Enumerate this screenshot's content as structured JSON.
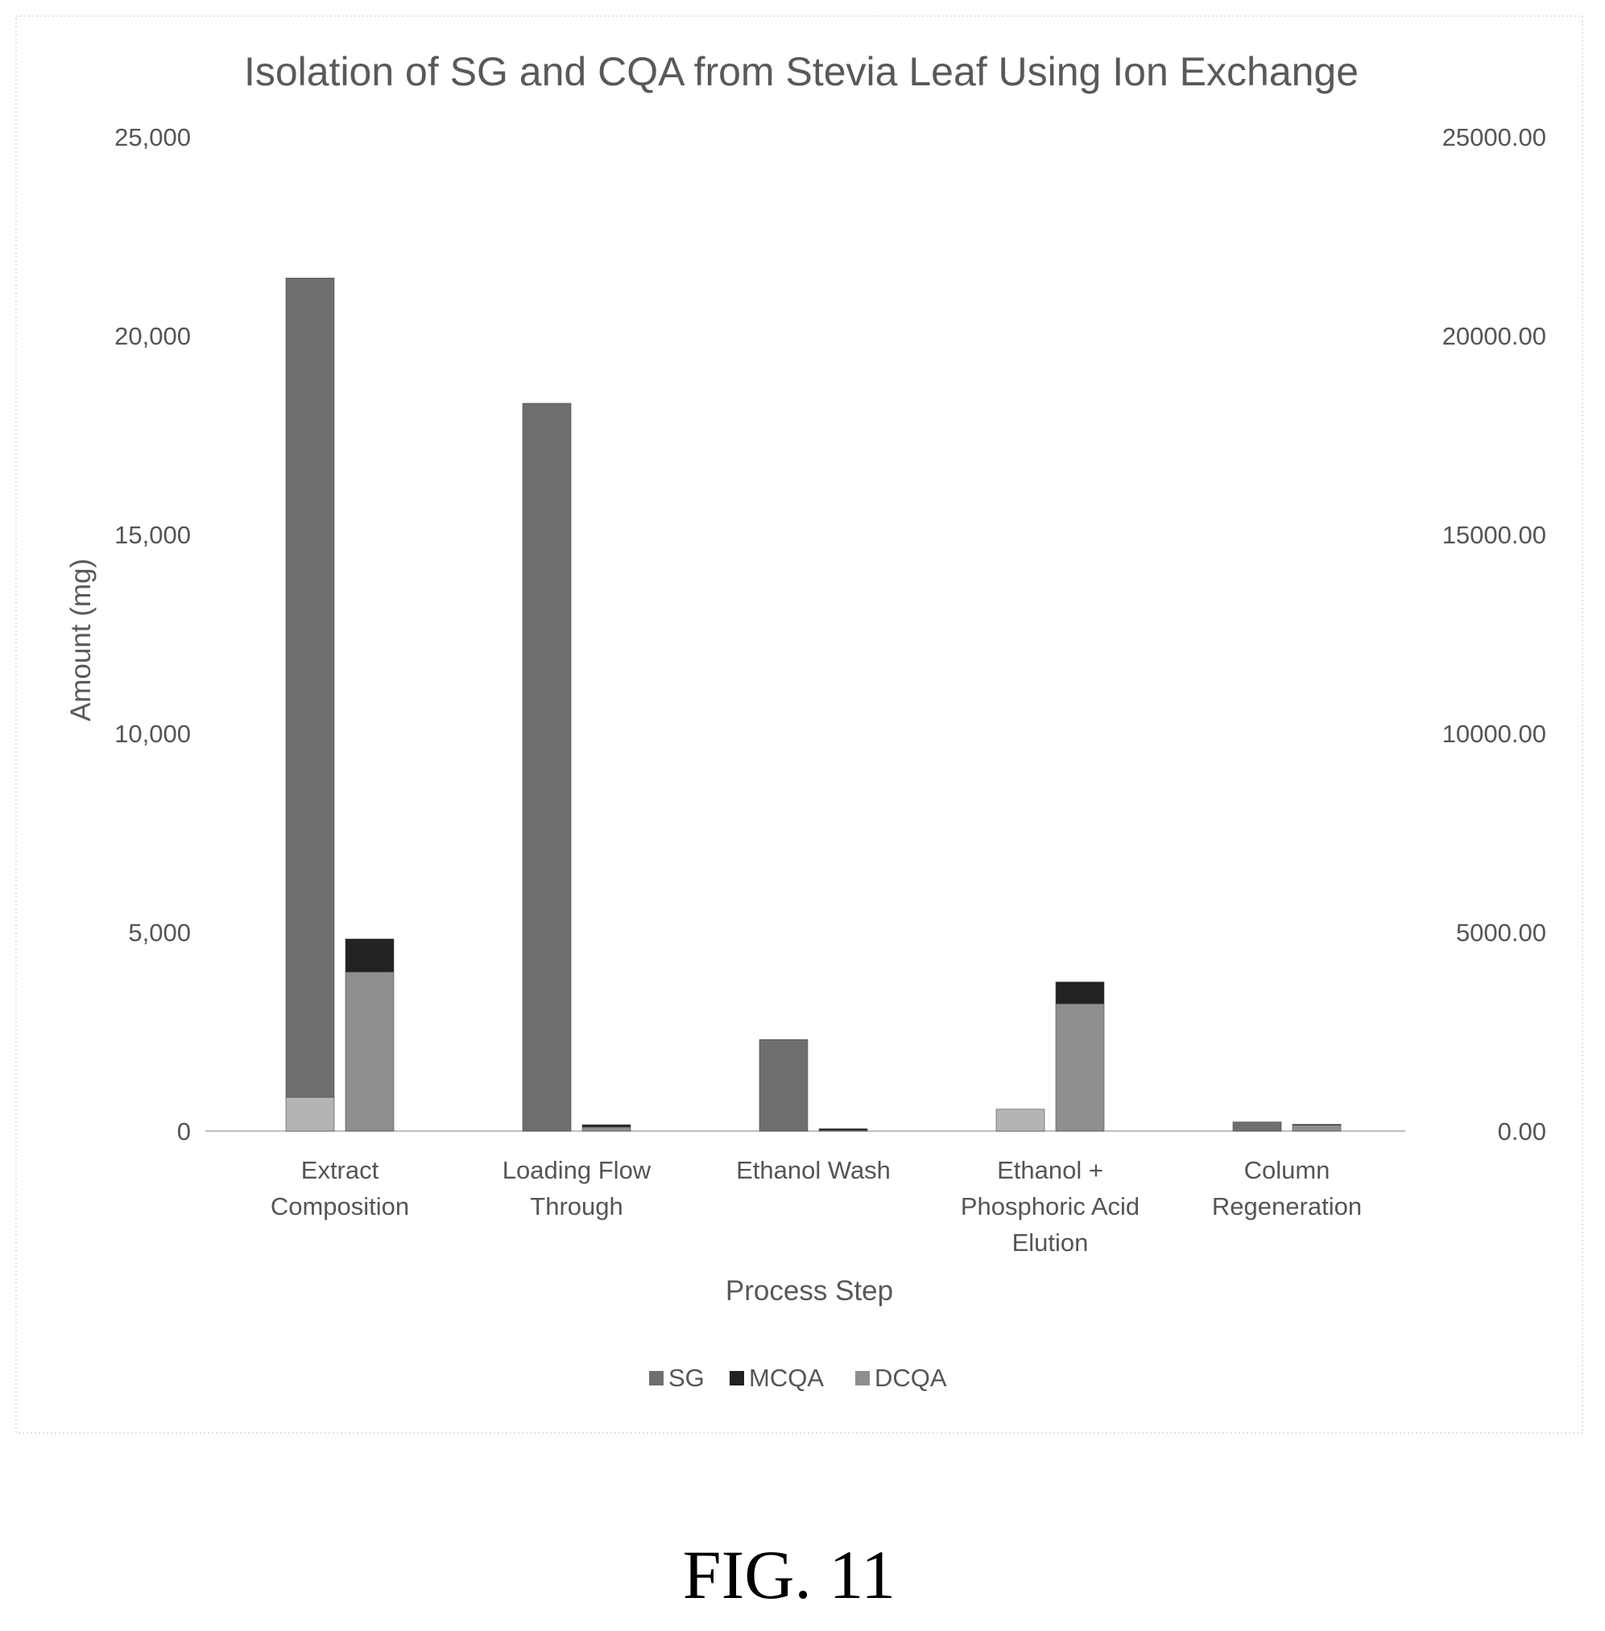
{
  "chart_data": {
    "type": "bar",
    "stacked": true,
    "title": "Isolation of SG and CQA from Stevia Leaf Using Ion Exchange",
    "xlabel": "Process Step",
    "ylabel": "Amount (mg)",
    "ylim": [
      0,
      25000
    ],
    "y_ticks": [
      "0",
      "5,000",
      "10,000",
      "15,000",
      "20,000",
      "25,000"
    ],
    "y2_ticks": [
      "0.00",
      "5000.00",
      "10000.00",
      "15000.00",
      "20000.00",
      "25000.00"
    ],
    "categories": [
      [
        "Extract",
        "Composition"
      ],
      [
        "Loading Flow",
        "Through"
      ],
      [
        "Ethanol Wash"
      ],
      [
        "Ethanol +",
        "Phosphoric Acid",
        "Elution"
      ],
      [
        "Column",
        "Regeneration"
      ]
    ],
    "sg_bar": {
      "series": [
        {
          "name": "",
          "values": [
            850,
            0,
            0,
            550,
            0
          ],
          "color": "#b4b4b4"
        },
        {
          "name": "SG",
          "values": [
            20600,
            18300,
            2300,
            0,
            230
          ],
          "color": "#6e6e6e"
        }
      ]
    },
    "cqa_bar": {
      "series": [
        {
          "name": "DCQA",
          "values": [
            4000,
            100,
            20,
            3200,
            150
          ],
          "color": "#8e8e8e"
        },
        {
          "name": "MCQA",
          "values": [
            830,
            60,
            40,
            550,
            20
          ],
          "color": "#222222"
        }
      ]
    },
    "legend": [
      {
        "name": "SG",
        "color": "#6e6e6e"
      },
      {
        "name": "MCQA",
        "color": "#222222"
      },
      {
        "name": "DCQA",
        "color": "#8e8e8e"
      }
    ],
    "legend_position": "bottom",
    "grid": false
  },
  "caption": "FIG. 11"
}
